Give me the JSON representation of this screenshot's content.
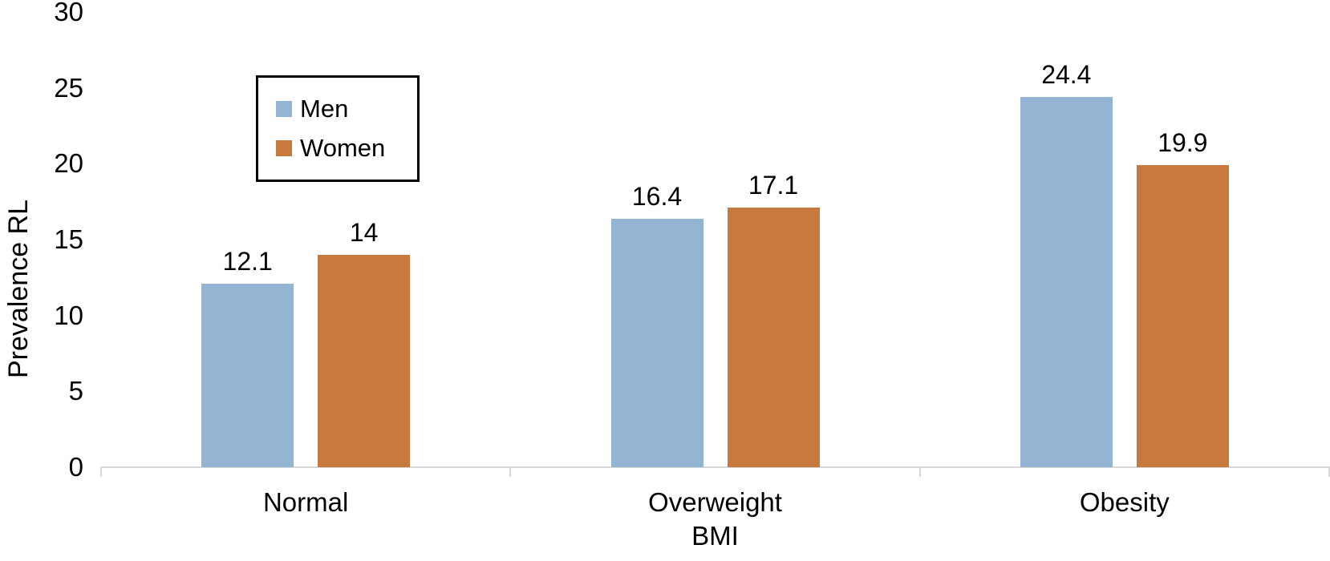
{
  "chart_data": {
    "type": "bar",
    "title": "",
    "categories": [
      "Normal",
      "Overweight",
      "Obesity"
    ],
    "series": [
      {
        "name": "Men",
        "color": "#93b4d2",
        "values": [
          12.1,
          16.4,
          24.4
        ]
      },
      {
        "name": "Women",
        "color": "#c87a3e",
        "values": [
          14,
          17.1,
          19.9
        ]
      }
    ],
    "data_labels": [
      [
        "12.1",
        "14"
      ],
      [
        "16.4",
        "17.1"
      ],
      [
        "24.4",
        "19.9"
      ]
    ],
    "xlabel": "BMI",
    "ylabel": "Prevalence RL",
    "yticks": [
      0,
      5,
      10,
      15,
      20,
      25,
      30
    ],
    "ylim": [
      0,
      30
    ],
    "grid": false,
    "legend_position": "inside-top-left",
    "axis_color": "#d9d9d9",
    "text_color": "#000000",
    "background_color": "#ffffff"
  }
}
